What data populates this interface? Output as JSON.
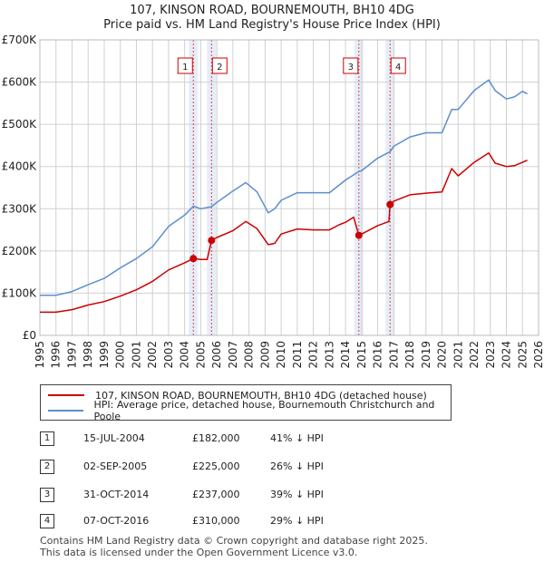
{
  "title_line1": "107, KINSON ROAD, BOURNEMOUTH, BH10 4DG",
  "title_line2": "Price paid vs. HM Land Registry's House Price Index (HPI)",
  "colors": {
    "property": "#cc0000",
    "hpi": "#5b8fcf",
    "band": "#dde6f5",
    "marker_border": "#cc0000"
  },
  "chart_data": {
    "type": "line",
    "title": "Price paid vs. HM Land Registry's House Price Index (HPI)",
    "xlim": [
      1995,
      2026
    ],
    "ylim": [
      0,
      700000
    ],
    "y_ticks": [
      0,
      100000,
      200000,
      300000,
      400000,
      500000,
      600000,
      700000
    ],
    "y_tick_labels": [
      "£0",
      "£100K",
      "£200K",
      "£300K",
      "£400K",
      "£500K",
      "£600K",
      "£700K"
    ],
    "x_ticks": [
      1995,
      1996,
      1997,
      1998,
      1999,
      2000,
      2001,
      2002,
      2003,
      2004,
      2005,
      2006,
      2007,
      2008,
      2009,
      2010,
      2011,
      2012,
      2013,
      2014,
      2015,
      2016,
      2017,
      2018,
      2019,
      2020,
      2021,
      2022,
      2023,
      2024,
      2025,
      2026
    ],
    "x_tick_labels": [
      "1995",
      "1996",
      "1997",
      "1998",
      "1999",
      "2000",
      "2001",
      "2002",
      "2003",
      "2004",
      "2005",
      "2006",
      "2007",
      "2008",
      "2009",
      "2010",
      "2011",
      "2012",
      "2013",
      "2014",
      "2015",
      "2016",
      "2017",
      "2018",
      "2019",
      "2020",
      "2021",
      "2022",
      "2023",
      "2024",
      "2025",
      "2026"
    ],
    "grid": true,
    "series": [
      {
        "name": "107, KINSON ROAD, BOURNEMOUTH, BH10 4DG (detached house)",
        "points": [
          [
            1995,
            55000
          ],
          [
            1996,
            55000
          ],
          [
            1997,
            61000
          ],
          [
            1998,
            72000
          ],
          [
            1999,
            80000
          ],
          [
            2000,
            93000
          ],
          [
            2001,
            108000
          ],
          [
            2002,
            128000
          ],
          [
            2003,
            155000
          ],
          [
            2004,
            172000
          ],
          [
            2004.54,
            182000
          ],
          [
            2005,
            180000
          ],
          [
            2005.4,
            180000
          ],
          [
            2005.67,
            225000
          ],
          [
            2006,
            232000
          ],
          [
            2007,
            248000
          ],
          [
            2007.8,
            270000
          ],
          [
            2008.5,
            253000
          ],
          [
            2009.2,
            215000
          ],
          [
            2009.6,
            218000
          ],
          [
            2010,
            240000
          ],
          [
            2011,
            252000
          ],
          [
            2012,
            250000
          ],
          [
            2013,
            250000
          ],
          [
            2013.6,
            262000
          ],
          [
            2014,
            268000
          ],
          [
            2014.5,
            280000
          ],
          [
            2014.83,
            237000
          ],
          [
            2015,
            240000
          ],
          [
            2016,
            260000
          ],
          [
            2016.7,
            270000
          ],
          [
            2016.77,
            310000
          ],
          [
            2017,
            318000
          ],
          [
            2018,
            333000
          ],
          [
            2019,
            337000
          ],
          [
            2020,
            340000
          ],
          [
            2020.6,
            395000
          ],
          [
            2021,
            378000
          ],
          [
            2022,
            410000
          ],
          [
            2022.9,
            432000
          ],
          [
            2023.3,
            408000
          ],
          [
            2024,
            400000
          ],
          [
            2024.5,
            402000
          ],
          [
            2025,
            410000
          ],
          [
            2025.3,
            415000
          ]
        ]
      },
      {
        "name": "HPI: Average price, detached house, Bournemouth Christchurch and Poole",
        "points": [
          [
            1995,
            95000
          ],
          [
            1996,
            95000
          ],
          [
            1997,
            104000
          ],
          [
            1998,
            120000
          ],
          [
            1999,
            135000
          ],
          [
            2000,
            160000
          ],
          [
            2001,
            182000
          ],
          [
            2002,
            210000
          ],
          [
            2003,
            258000
          ],
          [
            2004,
            285000
          ],
          [
            2004.54,
            306000
          ],
          [
            2005,
            300000
          ],
          [
            2005.67,
            305000
          ],
          [
            2006,
            315000
          ],
          [
            2007,
            342000
          ],
          [
            2007.8,
            362000
          ],
          [
            2008.5,
            340000
          ],
          [
            2009.2,
            290000
          ],
          [
            2009.6,
            300000
          ],
          [
            2010,
            320000
          ],
          [
            2011,
            338000
          ],
          [
            2012,
            338000
          ],
          [
            2013,
            338000
          ],
          [
            2014,
            368000
          ],
          [
            2014.83,
            388000
          ],
          [
            2015,
            390000
          ],
          [
            2016,
            420000
          ],
          [
            2016.77,
            435000
          ],
          [
            2017,
            448000
          ],
          [
            2018,
            470000
          ],
          [
            2019,
            480000
          ],
          [
            2020,
            480000
          ],
          [
            2020.6,
            535000
          ],
          [
            2021,
            535000
          ],
          [
            2022,
            580000
          ],
          [
            2022.9,
            605000
          ],
          [
            2023.3,
            580000
          ],
          [
            2024,
            560000
          ],
          [
            2024.5,
            565000
          ],
          [
            2025,
            578000
          ],
          [
            2025.3,
            572000
          ]
        ]
      }
    ],
    "transactions": [
      {
        "label": "1",
        "date": "15-JUL-2004",
        "price": "£182,000",
        "hpi": "41% ↓ HPI",
        "x": 2004.54,
        "y": 182000
      },
      {
        "label": "2",
        "date": "02-SEP-2005",
        "price": "£225,000",
        "hpi": "26% ↓ HPI",
        "x": 2005.67,
        "y": 225000
      },
      {
        "label": "3",
        "date": "31-OCT-2014",
        "price": "£237,000",
        "hpi": "39% ↓ HPI",
        "x": 2014.83,
        "y": 237000
      },
      {
        "label": "4",
        "date": "07-OCT-2016",
        "price": "£310,000",
        "hpi": "29% ↓ HPI",
        "x": 2016.77,
        "y": 310000
      }
    ]
  },
  "legend": {
    "property_label": "107, KINSON ROAD, BOURNEMOUTH, BH10 4DG (detached house)",
    "hpi_label": "HPI: Average price, detached house, Bournemouth Christchurch and Poole"
  },
  "footer_line1": "Contains HM Land Registry data © Crown copyright and database right 2025.",
  "footer_line2": "This data is licensed under the Open Government Licence v3.0."
}
